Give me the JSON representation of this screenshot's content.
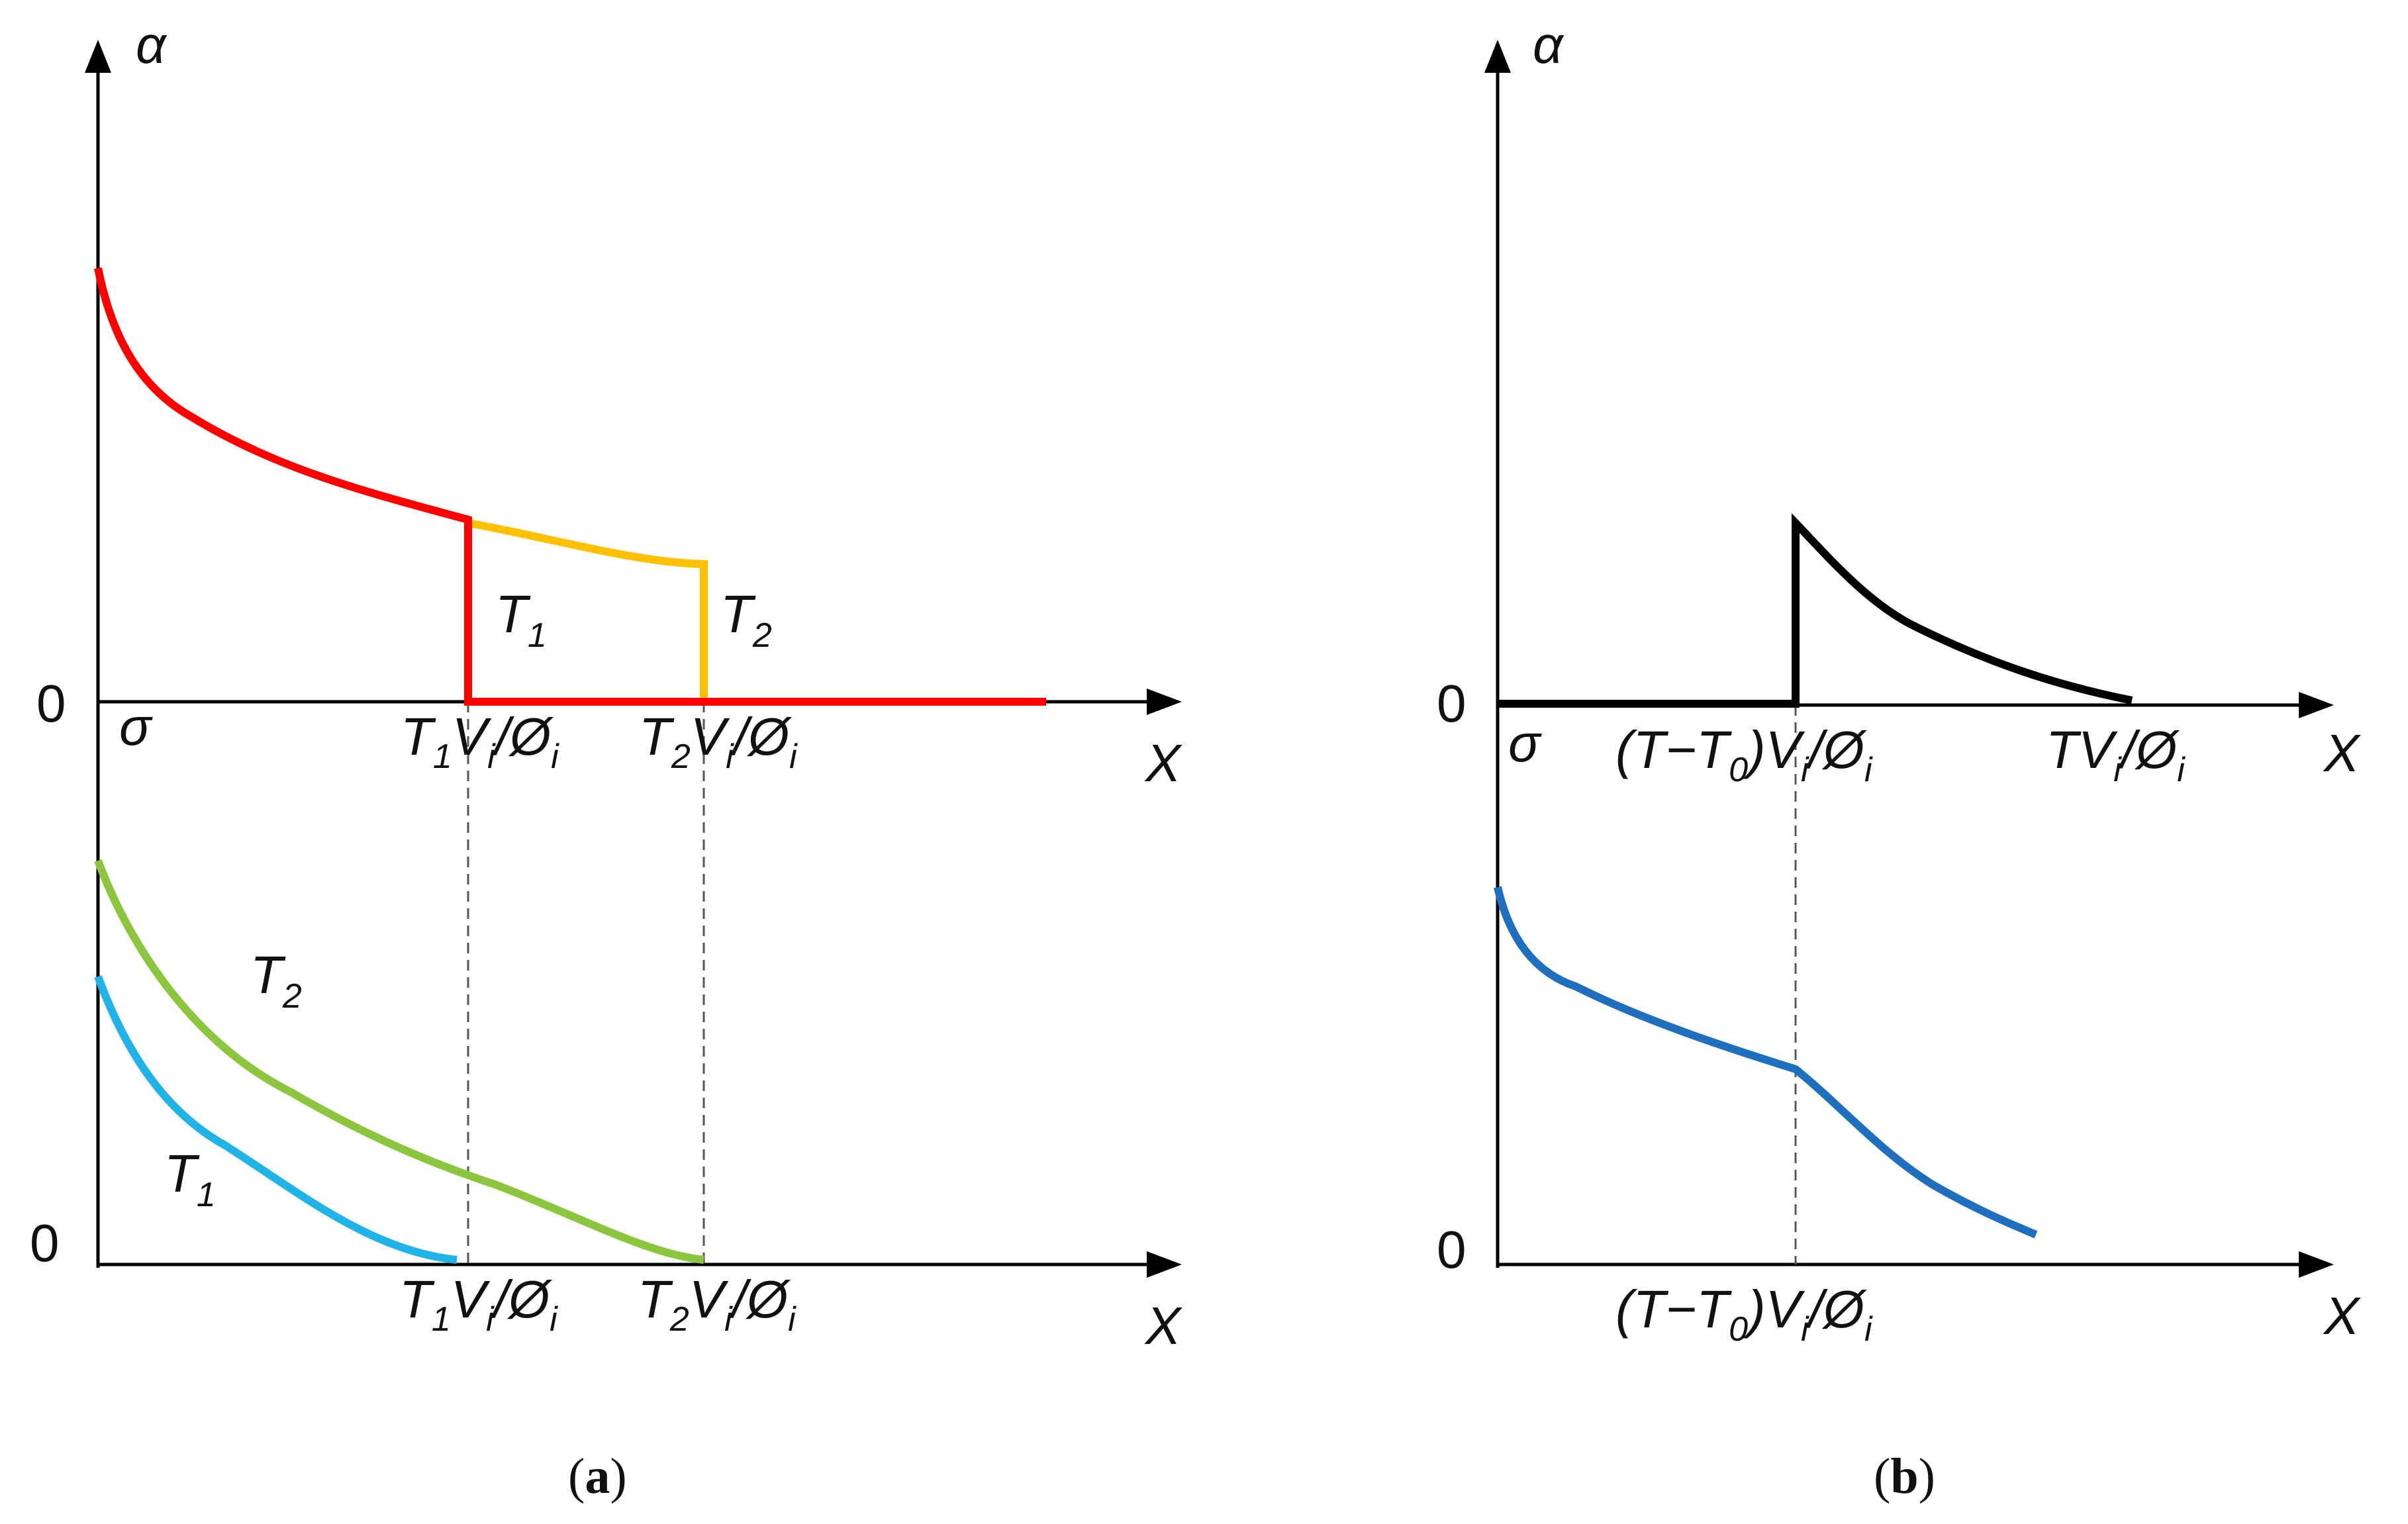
{
  "panel_a": {
    "caption_open": "(",
    "caption_letter": "a",
    "caption_close": ")",
    "y_axis_label": "α",
    "upper_zero": "0",
    "lower_zero": "0",
    "sigma_label": "σ",
    "x_axis_label_upper": "X",
    "x_axis_label_lower": "X",
    "tick_T1": {
      "a": "T",
      "b": "1",
      "c": "V",
      "d": "i",
      "e": "/Ø",
      "f": "i"
    },
    "tick_T2": {
      "a": "T",
      "b": "2",
      "c": "V",
      "d": "i",
      "e": "/Ø",
      "f": "i"
    },
    "curve_label_T1_upper": {
      "main": "T",
      "sub": "1"
    },
    "curve_label_T2_upper": {
      "main": "T",
      "sub": "2"
    },
    "curve_label_T2_lower": {
      "main": "T",
      "sub": "2"
    },
    "curve_label_T1_lower": {
      "main": "T",
      "sub": "1"
    }
  },
  "panel_b": {
    "caption_open": "(",
    "caption_letter": "b",
    "caption_close": ")",
    "y_axis_label": "α",
    "upper_zero": "0",
    "lower_zero": "0",
    "sigma_label": "σ",
    "x_axis_label_upper": "X",
    "x_axis_label_lower": "X",
    "tick_TT0": {
      "a": "(T−T",
      "b": "0",
      "c": ")V",
      "d": "i",
      "e": "/Ø",
      "f": "i"
    },
    "tick_TV": {
      "a": "TV",
      "b": "i",
      "c": "/Ø",
      "d": "i"
    }
  },
  "colors": {
    "red": "#ff0000",
    "orange": "#ffc000",
    "green": "#8cc63f",
    "light_blue": "#1fb3e8",
    "dark_blue": "#1f6fbf",
    "black": "#000000",
    "axis": "#000000",
    "dashed": "#555555"
  }
}
